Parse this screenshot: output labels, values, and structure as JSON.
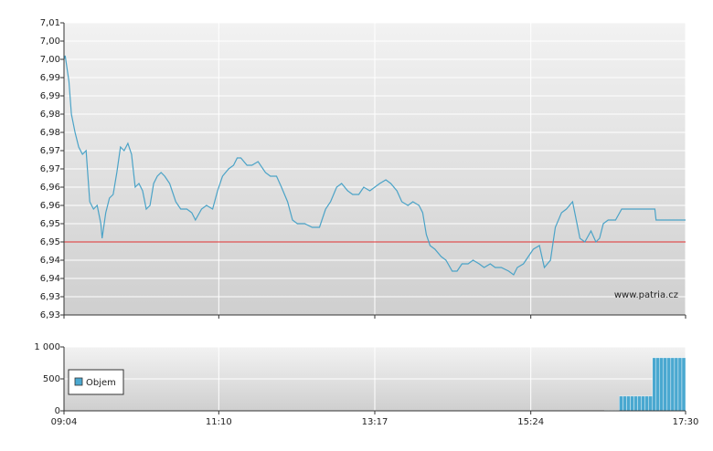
{
  "chart_data": [
    {
      "type": "line",
      "annotations": [
        "www.patria.cz"
      ],
      "reference_line": 6.95,
      "reference_color": "#e03030",
      "color": "#4ba3c7",
      "xlim": [
        544,
        1050
      ],
      "ylim": [
        6.93,
        7.01
      ],
      "yticks": [
        {
          "value": 6.93,
          "label": "6,93"
        },
        {
          "value": 6.935,
          "label": "6,93"
        },
        {
          "value": 6.94,
          "label": "6,94"
        },
        {
          "value": 6.945,
          "label": "6,94"
        },
        {
          "value": 6.95,
          "label": "6,95"
        },
        {
          "value": 6.955,
          "label": "6,95"
        },
        {
          "value": 6.96,
          "label": "6,96"
        },
        {
          "value": 6.965,
          "label": "6,96"
        },
        {
          "value": 6.97,
          "label": "6,97"
        },
        {
          "value": 6.975,
          "label": "6,97"
        },
        {
          "value": 6.98,
          "label": "6,98"
        },
        {
          "value": 6.985,
          "label": "6,98"
        },
        {
          "value": 6.99,
          "label": "6,99"
        },
        {
          "value": 6.995,
          "label": "6,99"
        },
        {
          "value": 7.0,
          "label": "7,00"
        },
        {
          "value": 7.005,
          "label": "7,00"
        },
        {
          "value": 7.01,
          "label": "7,01"
        }
      ],
      "grid": true,
      "x": [
        544,
        545,
        548,
        550,
        553,
        556,
        559,
        562,
        565,
        568,
        571,
        574,
        575,
        578,
        581,
        584,
        587,
        590,
        593,
        596,
        599,
        602,
        605,
        608,
        611,
        614,
        617,
        620,
        623,
        626,
        630,
        635,
        639,
        644,
        648,
        651,
        656,
        660,
        665,
        669,
        673,
        678,
        682,
        685,
        688,
        693,
        697,
        702,
        708,
        712,
        717,
        721,
        726,
        730,
        734,
        740,
        746,
        752,
        757,
        761,
        766,
        770,
        775,
        779,
        784,
        788,
        793,
        797,
        801,
        806,
        810,
        815,
        819,
        824,
        828,
        833,
        836,
        839,
        842,
        846,
        851,
        855,
        860,
        864,
        868,
        873,
        877,
        882,
        886,
        891,
        895,
        900,
        906,
        910,
        913,
        918,
        922,
        926,
        931,
        935,
        940,
        944,
        949,
        953,
        958,
        961,
        964,
        968,
        973,
        977,
        980,
        983,
        987,
        993,
        998,
        1013,
        1025,
        1026,
        1050
      ],
      "values": [
        7.0,
        7.001,
        6.994,
        6.985,
        6.98,
        6.976,
        6.974,
        6.975,
        6.961,
        6.959,
        6.96,
        6.955,
        6.951,
        6.958,
        6.962,
        6.963,
        6.969,
        6.976,
        6.975,
        6.977,
        6.974,
        6.965,
        6.966,
        6.964,
        6.959,
        6.96,
        6.966,
        6.968,
        6.969,
        6.968,
        6.966,
        6.961,
        6.959,
        6.959,
        6.958,
        6.956,
        6.959,
        6.96,
        6.959,
        6.964,
        6.968,
        6.97,
        6.971,
        6.973,
        6.973,
        6.971,
        6.971,
        6.972,
        6.969,
        6.968,
        6.968,
        6.965,
        6.961,
        6.956,
        6.955,
        6.955,
        6.954,
        6.954,
        6.959,
        6.961,
        6.965,
        6.966,
        6.964,
        6.963,
        6.963,
        6.965,
        6.964,
        6.965,
        6.966,
        6.967,
        6.966,
        6.964,
        6.961,
        6.96,
        6.961,
        6.96,
        6.958,
        6.952,
        6.949,
        6.948,
        6.946,
        6.945,
        6.942,
        6.942,
        6.944,
        6.944,
        6.945,
        6.944,
        6.943,
        6.944,
        6.943,
        6.943,
        6.942,
        6.941,
        6.943,
        6.944,
        6.946,
        6.948,
        6.949,
        6.943,
        6.945,
        6.954,
        6.958,
        6.959,
        6.961,
        6.956,
        6.951,
        6.95,
        6.953,
        6.95,
        6.951,
        6.955,
        6.956,
        6.956,
        6.959,
        6.959,
        6.959,
        6.956,
        6.956
      ]
    },
    {
      "type": "bar",
      "xlim": [
        544,
        1050
      ],
      "xticks": [
        {
          "value": 544,
          "label": "09:04"
        },
        {
          "value": 670,
          "label": "11:10"
        },
        {
          "value": 797,
          "label": "13:17"
        },
        {
          "value": 924,
          "label": "15:24"
        },
        {
          "value": 1050,
          "label": "17:30"
        }
      ],
      "ylim": [
        0,
        1000
      ],
      "yticks": [
        0,
        500,
        {
          "value": 1000,
          "label": "1 000"
        }
      ],
      "grid": true,
      "x": [
        987,
        990,
        993,
        996,
        999,
        1002,
        1005,
        1008,
        1011,
        1014,
        1017,
        1020,
        1023,
        1026,
        1029,
        1032,
        1035,
        1038,
        1041,
        1044,
        1047,
        1050
      ],
      "series": [
        {
          "name": "Objem",
          "color": "#4aa8d0",
          "values": [
            10,
            10,
            10,
            10,
            230,
            230,
            230,
            230,
            230,
            230,
            230,
            230,
            230,
            830,
            830,
            830,
            830,
            830,
            830,
            830,
            830,
            830
          ]
        }
      ]
    }
  ]
}
